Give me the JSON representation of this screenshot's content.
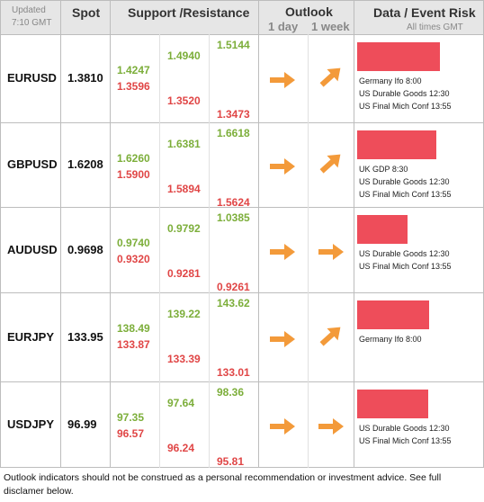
{
  "header": {
    "updated": "Updated",
    "time": "7:10 GMT",
    "spot": "Spot",
    "support_resistance": "Support /Resistance",
    "outlook": "Outlook",
    "outlook_1day": "1 day",
    "outlook_1week": "1 week",
    "data_event_risk": "Data / Event Risk",
    "all_times": "All times GMT"
  },
  "rows": [
    {
      "pair": "EURUSD",
      "spot": "1.3810",
      "r1": "1.4247",
      "s1": "1.3596",
      "r2": "1.4940",
      "s2": "1.3520",
      "r3": "1.5144",
      "s3": "1.3473",
      "outlook_1day": "right-arrow-icon",
      "outlook_1week": "up-right-arrow-icon",
      "risk_level": 0.9,
      "events": [
        "Germany Ifo 8:00",
        "US Durable Goods 12:30",
        "US Final Mich Conf 13:55"
      ]
    },
    {
      "pair": "GBPUSD",
      "spot": "1.6208",
      "r1": "1.6260",
      "s1": "1.5900",
      "r2": "1.6381",
      "s2": "1.5894",
      "r3": "1.6618",
      "s3": "1.5624",
      "outlook_1day": "right-arrow-icon",
      "outlook_1week": "up-right-arrow-icon",
      "risk_level": 0.86,
      "events": [
        "UK GDP 8:30",
        "US Durable Goods 12:30",
        "US Final Mich Conf 13:55"
      ]
    },
    {
      "pair": "AUDUSD",
      "spot": "0.9698",
      "r1": "0.9740",
      "s1": "0.9320",
      "r2": "0.9792",
      "s2": "0.9281",
      "r3": "1.0385",
      "s3": "0.9261",
      "outlook_1day": "right-arrow-icon",
      "outlook_1week": "right-arrow-icon",
      "risk_level": 0.55,
      "events": [
        "US Durable Goods 12:30",
        "US Final Mich Conf 13:55"
      ]
    },
    {
      "pair": "EURJPY",
      "spot": "133.95",
      "r1": "138.49",
      "s1": "133.87",
      "r2": "139.22",
      "s2": "133.39",
      "r3": "143.62",
      "s3": "133.01",
      "outlook_1day": "right-arrow-icon",
      "outlook_1week": "up-right-arrow-icon",
      "risk_level": 0.78,
      "events": [
        "Germany Ifo 8:00"
      ]
    },
    {
      "pair": "USDJPY",
      "spot": "96.99",
      "r1": "97.35",
      "s1": "96.57",
      "r2": "97.64",
      "s2": "96.24",
      "r3": "98.36",
      "s3": "95.81",
      "outlook_1day": "right-arrow-icon",
      "outlook_1week": "right-arrow-icon",
      "risk_level": 0.77,
      "events": [
        "US Durable Goods 12:30",
        "US Final Mich Conf 13:55"
      ]
    }
  ],
  "footnote": "Outlook indicators should not be construed as a personal recommendation or investment advice. See full disclamer below.",
  "colors": {
    "resistance": "#7cae3a",
    "support": "#e04646",
    "arrow": "#f39a3a",
    "risk_bar": "#ee4d5a",
    "header_bg": "#e6e6e6"
  }
}
